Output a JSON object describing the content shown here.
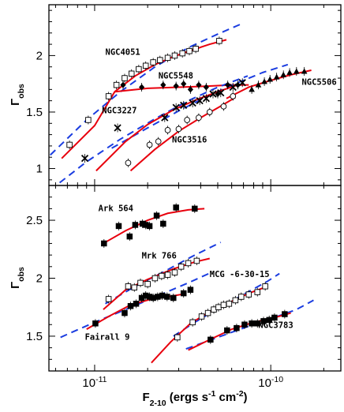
{
  "colors": {
    "model": "#e8000d",
    "fit": "#1b3de0",
    "axis": "#000000"
  },
  "chart_data": [
    {
      "type": "scatter",
      "panel": "top",
      "ylabel": "Γ_obs",
      "ylim": [
        0.85,
        2.45
      ],
      "yticks": [
        1,
        1.5,
        2
      ],
      "ytick_labels": [
        "1",
        "1.5",
        "2"
      ],
      "xscale": "log",
      "xlim": [
        5.5e-12,
        2.5e-10
      ],
      "series": [
        {
          "name": "NGC4051",
          "marker": "open-square",
          "label_pos": [
            1.15e-11,
            2.005
          ],
          "x": [
            7.2e-12,
            9.2e-12,
            1.2e-11,
            1.33e-11,
            1.48e-11,
            1.62e-11,
            1.78e-11,
            1.95e-11,
            2.15e-11,
            2.35e-11,
            2.6e-11,
            2.85e-11,
            3.15e-11,
            3.45e-11,
            3.75e-11,
            5.1e-11
          ],
          "y": [
            1.21,
            1.43,
            1.64,
            1.74,
            1.8,
            1.84,
            1.88,
            1.91,
            1.94,
            1.96,
            1.98,
            2.0,
            2.02,
            2.04,
            2.06,
            2.13
          ],
          "model": {
            "x": [
              6.5e-12,
              1e-11,
              1.3e-11,
              1.7e-11,
              2.2e-11,
              2.8e-11,
              3.6e-11,
              4.5e-11,
              5.6e-11
            ],
            "y": [
              1.09,
              1.38,
              1.68,
              1.82,
              1.92,
              1.99,
              2.05,
              2.1,
              2.14
            ]
          },
          "fit": {
            "x": [
              5.6e-12,
              9e-12,
              1.4e-11,
              2.2e-11,
              3.4e-11,
              5e-11,
              6.8e-11
            ],
            "y": [
              1.12,
              1.43,
              1.68,
              1.9,
              2.07,
              2.19,
              2.28
            ]
          }
        },
        {
          "name": "NGC5548",
          "marker": "filled-diamond",
          "label_pos": [
            2.3e-11,
            1.795
          ],
          "x": [
            1.45e-11,
            1.85e-11,
            2.45e-11,
            2.9e-11,
            3.2e-11,
            3.5e-11,
            3.9e-11,
            4.3e-11,
            5e-11,
            5.7e-11,
            6.5e-11
          ],
          "y": [
            1.74,
            1.72,
            1.74,
            1.73,
            1.75,
            1.7,
            1.74,
            1.72,
            1.66,
            1.74,
            1.74
          ],
          "model": {
            "x": [
              1.3e-11,
              2e-11,
              3e-11,
              4.5e-11,
              6e-11,
              7.5e-11
            ],
            "y": [
              1.68,
              1.71,
              1.72,
              1.73,
              1.74,
              1.74
            ]
          }
        },
        {
          "name": "NGC5506",
          "marker": "filled-triangle",
          "label_pos": [
            1.5e-10,
            1.74
          ],
          "x": [
            7.8e-11,
            8.5e-11,
            9.2e-11,
            9.9e-11,
            1.08e-10,
            1.18e-10,
            1.28e-10,
            1.4e-10,
            1.55e-10
          ],
          "y": [
            1.7,
            1.74,
            1.77,
            1.79,
            1.81,
            1.83,
            1.85,
            1.86,
            1.86
          ],
          "model": {
            "x": [
              5.6e-11,
              7.5e-11,
              1e-10,
              1.3e-10,
              1.7e-10
            ],
            "y": [
              1.62,
              1.72,
              1.78,
              1.83,
              1.87
            ]
          },
          "fit": {
            "x": [
              1.25e-11,
              2e-11,
              3e-11,
              4.5e-11,
              6.5e-11,
              9e-11,
              1.25e-10
            ],
            "y": [
              1.18,
              1.36,
              1.51,
              1.65,
              1.76,
              1.85,
              1.92
            ]
          }
        },
        {
          "name": "NGC3227",
          "marker": "cross",
          "label_pos": [
            1.1e-11,
            1.49
          ],
          "x": [
            8.8e-12,
            1.35e-11,
            2.5e-11,
            2.9e-11,
            3.2e-11,
            3.6e-11,
            3.95e-11,
            4.3e-11,
            4.7e-11,
            5.2e-11,
            6.1e-11,
            6.9e-11
          ],
          "y": [
            1.09,
            1.36,
            1.45,
            1.54,
            1.56,
            1.58,
            1.6,
            1.62,
            1.66,
            1.67,
            1.72,
            1.76
          ],
          "model": {
            "x": [
              1.02e-11,
              1.5e-11,
              2e-11,
              2.8e-11,
              3.8e-11,
              5e-11,
              6.5e-11
            ],
            "y": [
              0.98,
              1.24,
              1.39,
              1.52,
              1.61,
              1.68,
              1.74
            ]
          },
          "fit": {
            "x": [
              5.6e-12,
              9e-12,
              1.4e-11,
              2.2e-11,
              3.4e-11,
              5e-11,
              7.4e-11
            ],
            "y": [
              0.81,
              1.06,
              1.26,
              1.44,
              1.6,
              1.72,
              1.82
            ]
          }
        },
        {
          "name": "NGC3516",
          "marker": "open-circle",
          "label_pos": [
            2.75e-11,
            1.23
          ],
          "x": [
            1.55e-11,
            2.05e-11,
            2.3e-11,
            2.6e-11,
            3e-11,
            3.35e-11,
            3.9e-11,
            4.5e-11,
            5.4e-11,
            6.1e-11
          ],
          "y": [
            1.05,
            1.21,
            1.24,
            1.34,
            1.35,
            1.43,
            1.45,
            1.5,
            1.55,
            1.64
          ],
          "model": {
            "x": [
              1.6e-11,
              2.2e-11,
              3e-11,
              4e-11,
              5.3e-11,
              6.3e-11
            ],
            "y": [
              0.98,
              1.17,
              1.33,
              1.45,
              1.56,
              1.63
            ]
          }
        }
      ]
    },
    {
      "type": "scatter",
      "panel": "bottom",
      "ylabel": "Γ_obs",
      "xlabel": "F_{2-10} (ergs s^{-1} cm^{-2})",
      "ylim": [
        1.2,
        2.8
      ],
      "yticks": [
        1.5,
        2,
        2.5
      ],
      "ytick_labels": [
        "1.5",
        "2",
        "2.5"
      ],
      "xscale": "log",
      "xlim": [
        5.5e-12,
        2.5e-10
      ],
      "xticks": [
        1e-11,
        1e-10
      ],
      "xtick_labels": [
        "10^{-11}",
        "10^{-10}"
      ],
      "series": [
        {
          "name": "Ark 564",
          "marker": "filled-square",
          "label_pos": [
            1.05e-11,
            2.58
          ],
          "x": [
            1.13e-11,
            1.37e-11,
            1.58e-11,
            1.7e-11,
            1.87e-11,
            1.95e-11,
            2.05e-11,
            2.25e-11,
            2.45e-11,
            2.9e-11,
            3.7e-11
          ],
          "y": [
            2.3,
            2.45,
            2.36,
            2.46,
            2.47,
            2.46,
            2.45,
            2.54,
            2.47,
            2.61,
            2.6
          ],
          "model": {
            "x": [
              1.12e-11,
              1.5e-11,
              2e-11,
              2.6e-11,
              3.4e-11,
              4.2e-11
            ],
            "y": [
              2.3,
              2.41,
              2.5,
              2.56,
              2.59,
              2.6
            ]
          }
        },
        {
          "name": "Mrk 766",
          "marker": "open-square",
          "label_pos": [
            1.85e-11,
            2.17
          ],
          "x": [
            1.2e-11,
            1.55e-11,
            1.68e-11,
            1.82e-11,
            2e-11,
            2.2e-11,
            2.4e-11,
            2.6e-11,
            2.85e-11,
            3.1e-11,
            3.4e-11,
            3.8e-11
          ],
          "y": [
            1.82,
            1.93,
            1.92,
            1.96,
            1.95,
            2.0,
            2.02,
            2.03,
            2.05,
            2.1,
            2.13,
            2.15
          ],
          "model": {
            "x": [
              1.12e-11,
              1.5e-11,
              2e-11,
              2.8e-11,
              3.7e-11,
              4.5e-11
            ],
            "y": [
              1.73,
              1.9,
              1.99,
              2.08,
              2.14,
              2.17
            ]
          },
          "fit": {
            "x": [
              1.15e-11,
              1.7e-11,
              2.5e-11,
              3.6e-11,
              5.2e-11
            ],
            "y": [
              1.78,
              1.93,
              2.06,
              2.19,
              2.31
            ]
          }
        },
        {
          "name": "Fairall 9",
          "marker": "filled-square",
          "label_pos": [
            8.8e-12,
            1.47
          ],
          "x": [
            1.01e-11,
            1.48e-11,
            1.6e-11,
            1.72e-11,
            1.85e-11,
            1.95e-11,
            2.05e-11,
            2.15e-11,
            2.28e-11,
            2.42e-11,
            2.58e-11,
            2.8e-11,
            3.2e-11,
            3.5e-11
          ],
          "y": [
            1.61,
            1.7,
            1.76,
            1.78,
            1.83,
            1.85,
            1.84,
            1.83,
            1.84,
            1.85,
            1.84,
            1.83,
            1.87,
            1.9
          ],
          "model": {
            "x": [
              9e-12,
              1.2e-11,
              1.6e-11,
              2.1e-11,
              2.6e-11,
              3.1e-11
            ],
            "y": [
              1.56,
              1.67,
              1.77,
              1.82,
              1.84,
              1.86
            ]
          },
          "fit": {
            "x": [
              6.4e-12,
              1e-11,
              1.5e-11,
              2.3e-11,
              3.4e-11,
              4.6e-11
            ],
            "y": [
              1.49,
              1.62,
              1.73,
              1.85,
              1.96,
              2.05
            ]
          }
        },
        {
          "name": "MCG -6-30-15",
          "marker": "open-square",
          "label_pos": [
            4.5e-11,
            2.01
          ],
          "x": [
            2.95e-11,
            3.6e-11,
            4.05e-11,
            4.4e-11,
            4.75e-11,
            5.05e-11,
            5.4e-11,
            5.8e-11,
            6.3e-11,
            6.8e-11,
            7.5e-11,
            8.4e-11,
            9.3e-11
          ],
          "y": [
            1.49,
            1.62,
            1.67,
            1.7,
            1.73,
            1.75,
            1.77,
            1.78,
            1.81,
            1.84,
            1.86,
            1.88,
            1.93
          ],
          "model": {
            "x": [
              2.1e-11,
              2.7e-11,
              3.5e-11,
              4.5e-11,
              5.8e-11,
              7.5e-11,
              9.6e-11
            ],
            "y": [
              1.27,
              1.45,
              1.61,
              1.71,
              1.79,
              1.87,
              1.93
            ]
          },
          "fit": {
            "x": [
              2.8e-11,
              3.8e-11,
              5.2e-11,
              7e-11,
              9.5e-11,
              1.12e-10
            ],
            "y": [
              1.5,
              1.63,
              1.75,
              1.86,
              1.97,
              2.04
            ]
          }
        },
        {
          "name": "NGC3783",
          "marker": "filled-square",
          "label_pos": [
            8.5e-11,
            1.57
          ],
          "x": [
            4.55e-11,
            5.65e-11,
            6.4e-11,
            7.1e-11,
            7.8e-11,
            8.4e-11,
            9.1e-11,
            9.8e-11,
            1.05e-10,
            1.2e-10
          ],
          "y": [
            1.47,
            1.55,
            1.57,
            1.6,
            1.61,
            1.61,
            1.63,
            1.64,
            1.66,
            1.69
          ],
          "model": {
            "x": [
              3.4e-11,
              4.5e-11,
              6e-11,
              8e-11,
              1.05e-10,
              1.3e-10
            ],
            "y": [
              1.38,
              1.47,
              1.56,
              1.62,
              1.66,
              1.7
            ]
          },
          "fit": {
            "x": [
              3.3e-11,
              4.8e-11,
              7e-11,
              1e-10,
              1.4e-10,
              1.75e-10
            ],
            "y": [
              1.39,
              1.48,
              1.57,
              1.65,
              1.73,
              1.81
            ]
          }
        }
      ]
    }
  ]
}
